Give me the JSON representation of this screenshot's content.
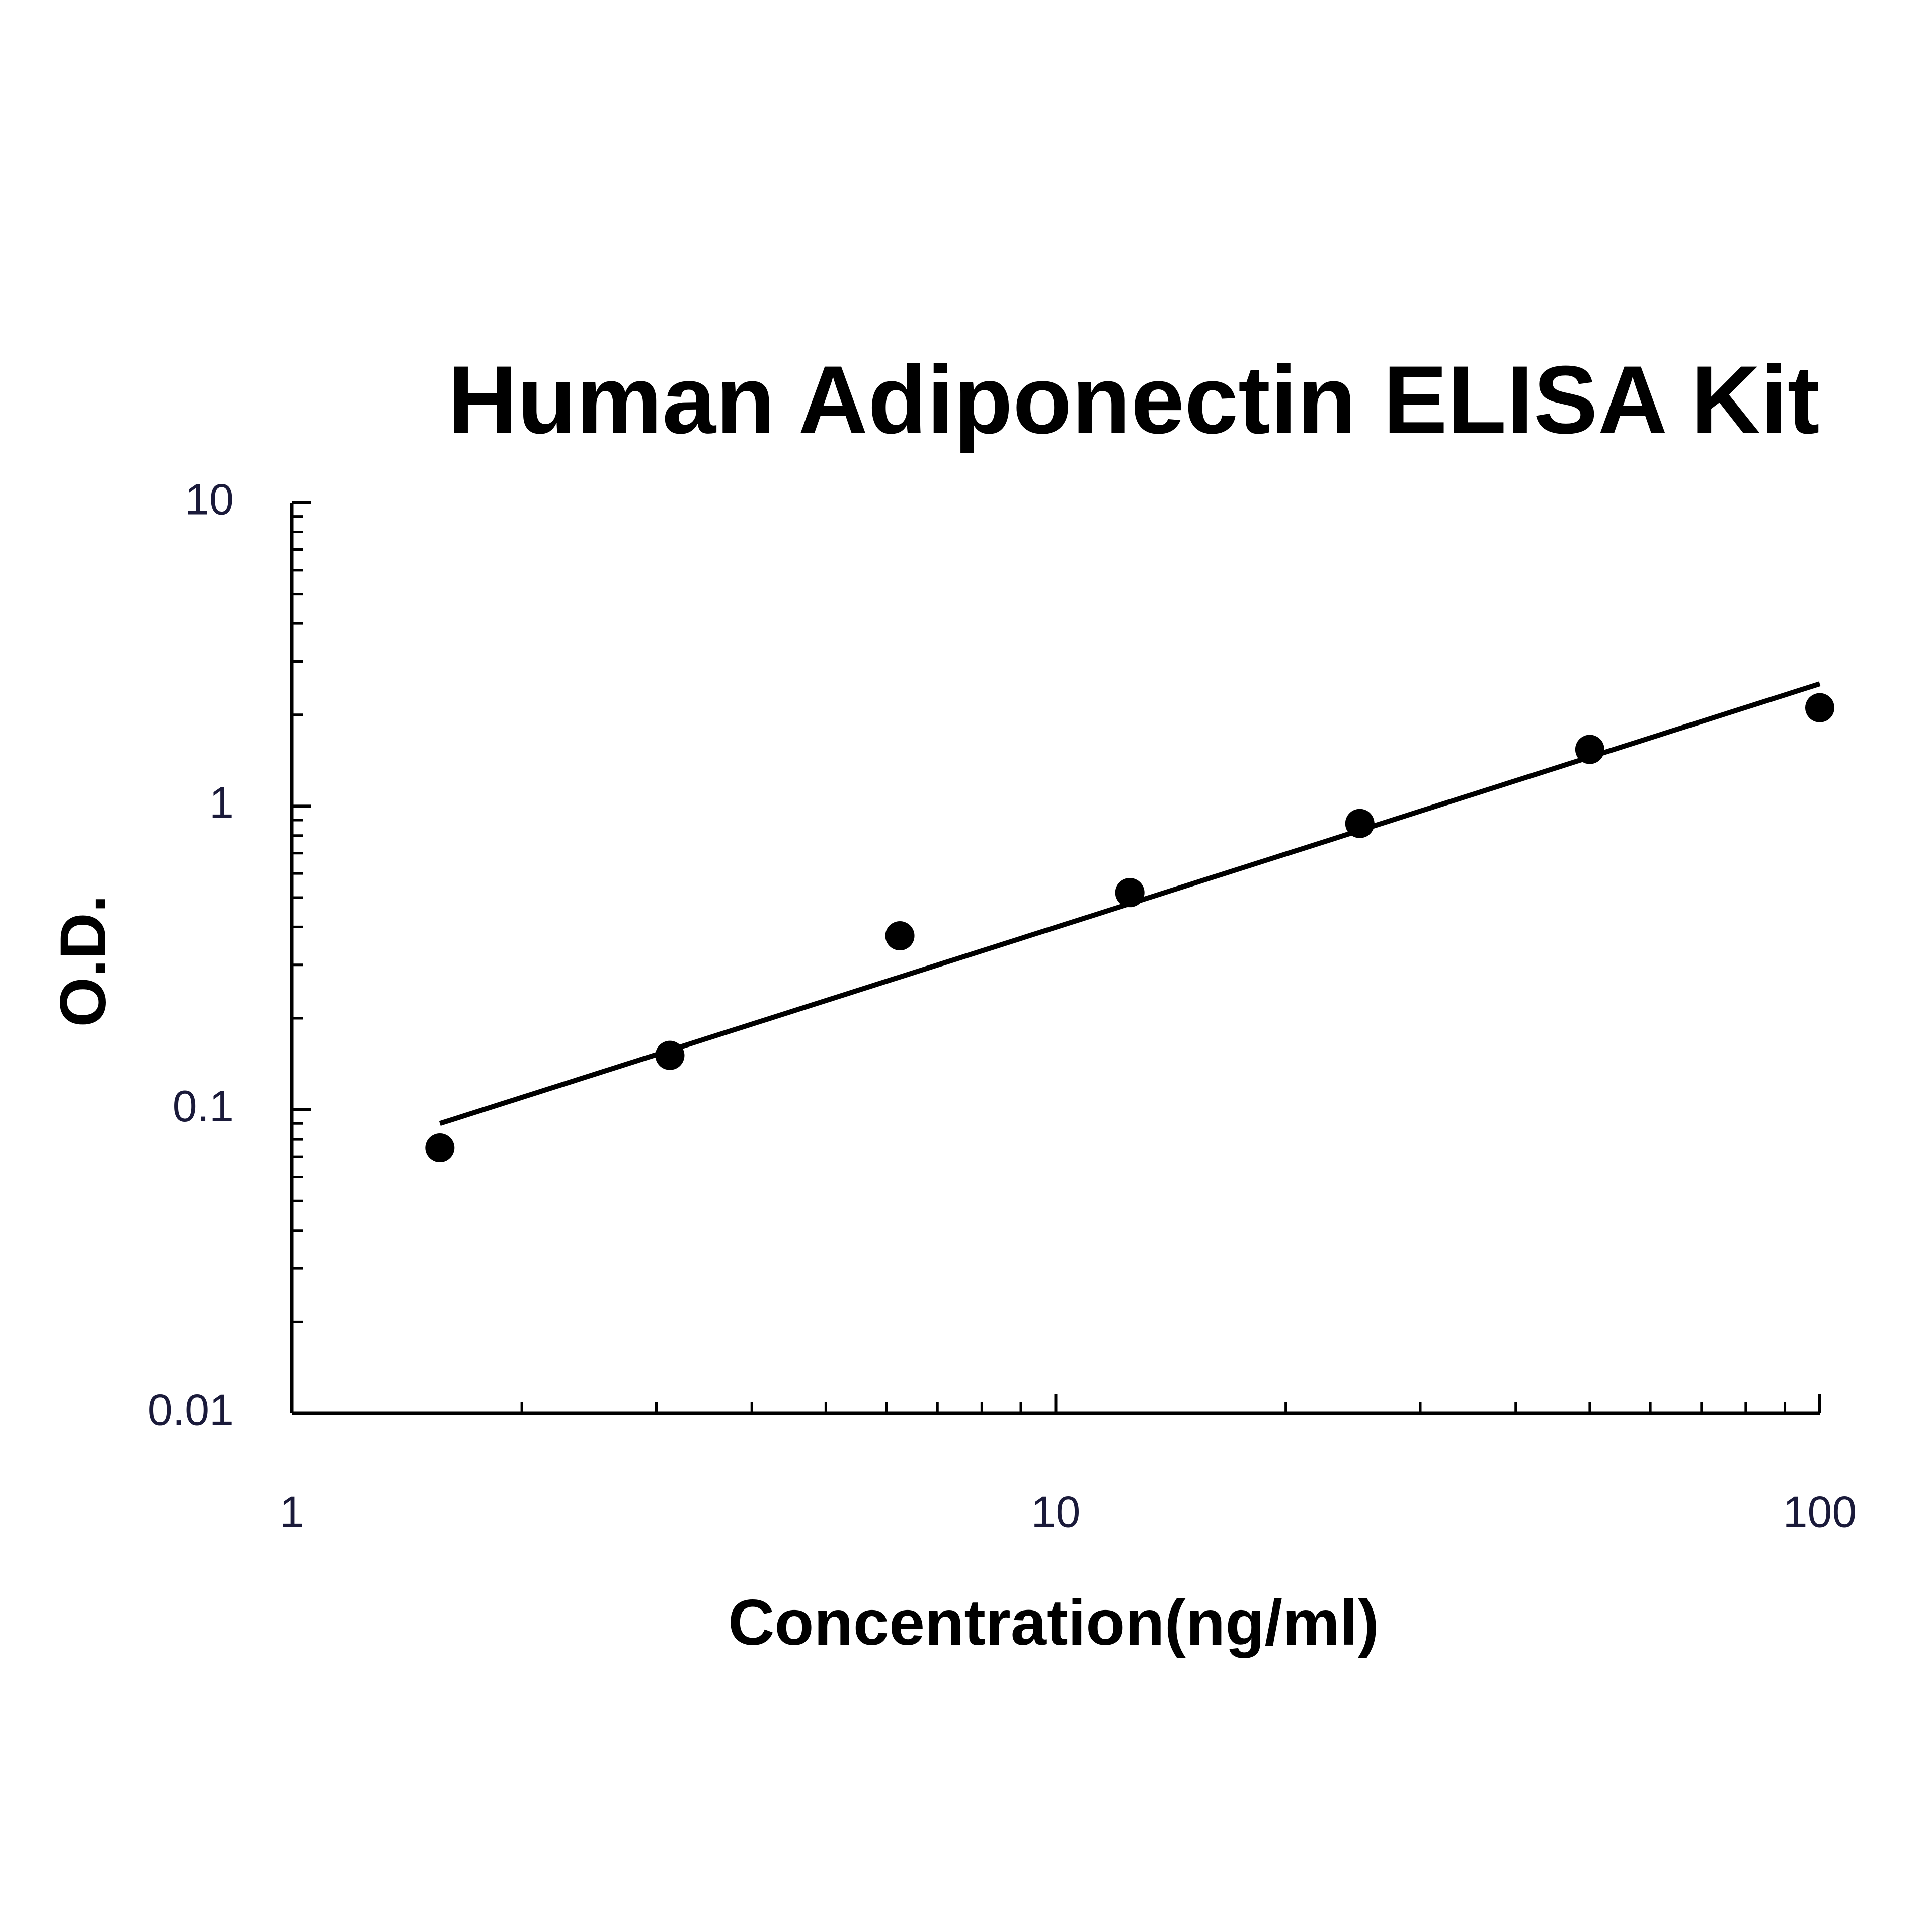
{
  "chart_data": {
    "type": "scatter",
    "title": "Human Adiponectin ELISA Kit",
    "x_label": "Concentration(ng/ml)",
    "y_label": "O.D.",
    "x": [
      1.5625,
      3.125,
      6.25,
      12.5,
      25,
      50,
      100
    ],
    "values": [
      0.075,
      0.151,
      0.374,
      0.519,
      0.877,
      1.538,
      2.11
    ],
    "color": "#000000",
    "fit": {
      "x": [
        1.5625,
        100
      ],
      "values": [
        0.09,
        2.53
      ],
      "color": "#000000"
    },
    "log_x": true,
    "log_y": true,
    "xlim": [
      1,
      100
    ],
    "ylim": [
      0.01,
      10
    ],
    "xticks": [
      1,
      10,
      100
    ],
    "yticks": [
      0.01,
      0.1,
      1,
      10
    ],
    "xminorticks": [
      2,
      3,
      4,
      5,
      6,
      7,
      8,
      9,
      20,
      30,
      40,
      50,
      60,
      70,
      80,
      90
    ],
    "yminorticks": [
      0.02,
      0.03,
      0.04,
      0.05,
      0.06,
      0.07,
      0.08,
      0.09,
      0.2,
      0.3,
      0.4,
      0.5,
      0.6,
      0.7,
      0.8,
      0.9,
      2,
      3,
      4,
      5,
      6,
      7,
      8,
      9
    ]
  }
}
